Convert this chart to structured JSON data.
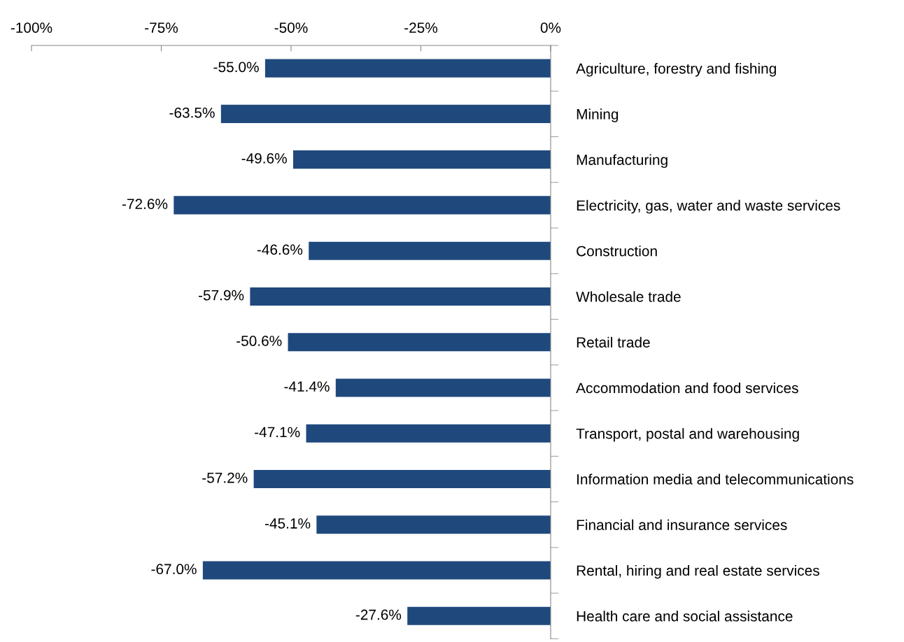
{
  "chart_data": {
    "type": "bar",
    "orientation": "horizontal",
    "categories": [
      "Agriculture, forestry and fishing",
      "Mining",
      "Manufacturing",
      "Electricity, gas, water and waste services",
      "Construction",
      "Wholesale trade",
      "Retail trade",
      "Accommodation and food services",
      "Transport, postal and warehousing",
      "Information media and telecommunications",
      "Financial and insurance services",
      "Rental, hiring and real estate services",
      "Health care and social assistance"
    ],
    "values": [
      -55.0,
      -63.5,
      -49.6,
      -72.6,
      -46.6,
      -57.9,
      -50.6,
      -41.4,
      -47.1,
      -57.2,
      -45.1,
      -67.0,
      -27.6
    ],
    "value_labels": [
      "-55.0%",
      "-63.5%",
      "-49.6%",
      "-72.6%",
      "-46.6%",
      "-57.9%",
      "-50.6%",
      "-41.4%",
      "-47.1%",
      "-57.2%",
      "-45.1%",
      "-67.0%",
      "-27.6%"
    ],
    "color": "#1f497d",
    "xlim": [
      -100,
      0
    ],
    "xticks": [
      {
        "value": -100,
        "label": "-100%"
      },
      {
        "value": -75,
        "label": "-75%"
      },
      {
        "value": -50,
        "label": "-50%"
      },
      {
        "value": -25,
        "label": "-25%"
      },
      {
        "value": 0,
        "label": "0%"
      }
    ],
    "grid": false,
    "legend": false
  }
}
